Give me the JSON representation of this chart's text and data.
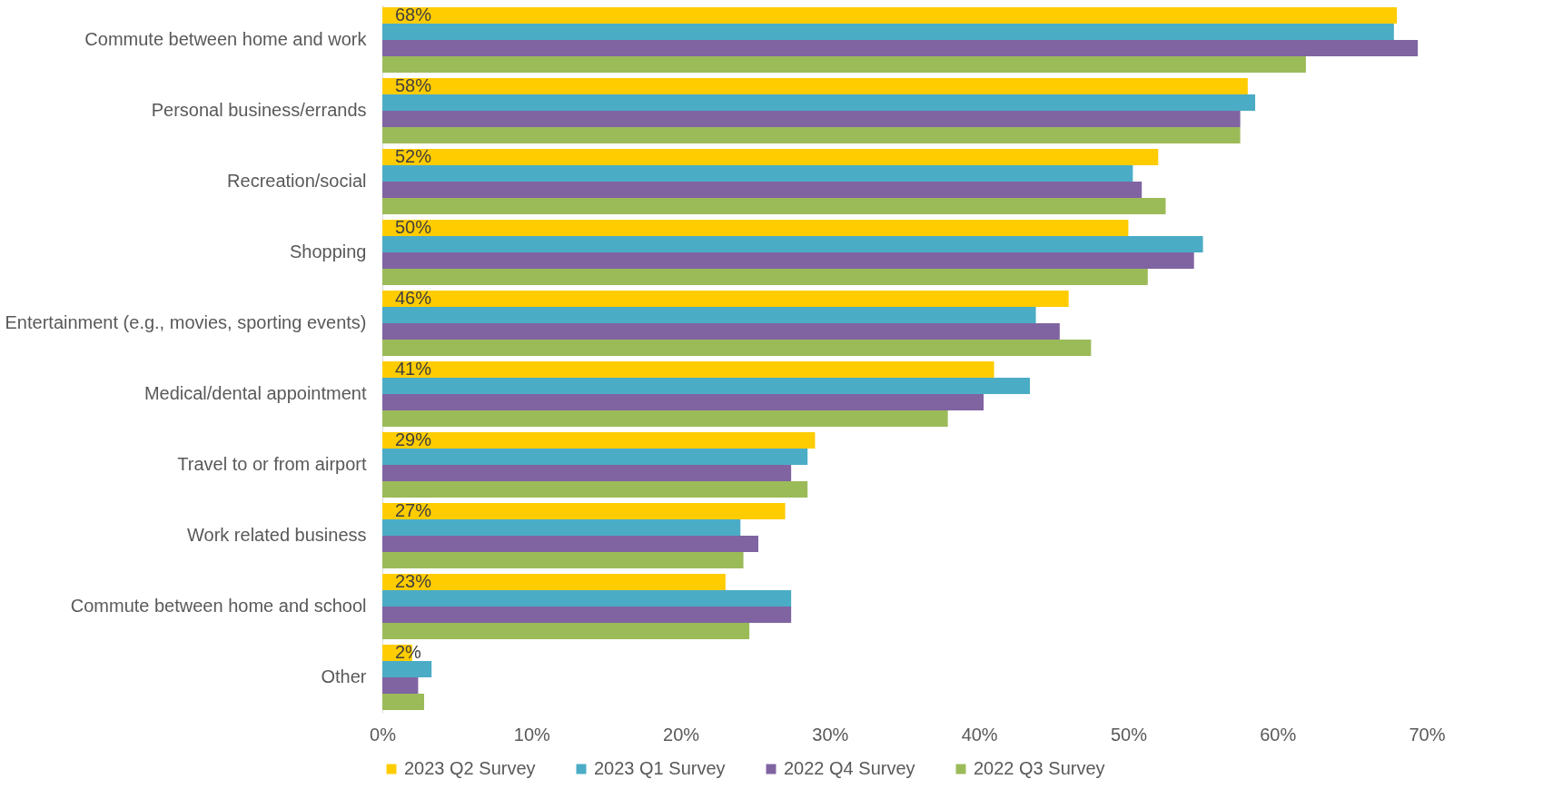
{
  "chart_data": {
    "type": "bar",
    "orientation": "horizontal",
    "categories": [
      "Commute between home and work",
      "Personal business/errands",
      "Recreation/social",
      "Shopping",
      "Entertainment (e.g., movies, sporting events)",
      "Medical/dental appointment",
      "Travel to or from airport",
      "Work related business",
      "Commute between home and school",
      "Other"
    ],
    "series": [
      {
        "name": "2023 Q2 Survey",
        "color": "#ffcc00",
        "values": [
          68,
          58,
          52,
          50,
          46,
          41,
          29,
          27,
          23,
          2
        ],
        "value_labels": [
          "68%",
          "58%",
          "52%",
          "50%",
          "46%",
          "41%",
          "29%",
          "27%",
          "23%",
          "2%"
        ]
      },
      {
        "name": "2023 Q1 Survey",
        "color": "#4bacc6",
        "values": [
          67.8,
          58.5,
          50.3,
          55,
          43.8,
          43.4,
          28.5,
          24,
          27.4,
          3.3
        ]
      },
      {
        "name": "2022 Q4 Survey",
        "color": "#8064a2",
        "values": [
          69.4,
          57.5,
          50.9,
          54.4,
          45.4,
          40.3,
          27.4,
          25.2,
          27.4,
          2.4
        ]
      },
      {
        "name": "2022 Q3 Survey",
        "color": "#9bbb59",
        "values": [
          61.9,
          57.5,
          52.5,
          51.3,
          47.5,
          37.9,
          28.5,
          24.2,
          24.6,
          2.8
        ]
      }
    ],
    "xlim": [
      0,
      70
    ],
    "xticks": [
      {
        "value": 0,
        "label": "0%"
      },
      {
        "value": 10,
        "label": "10%"
      },
      {
        "value": 20,
        "label": "20%"
      },
      {
        "value": 30,
        "label": "30%"
      },
      {
        "value": 40,
        "label": "40%"
      },
      {
        "value": 50,
        "label": "50%"
      },
      {
        "value": 60,
        "label": "60%"
      },
      {
        "value": 70,
        "label": "70%"
      }
    ],
    "grid": false,
    "legend": "bottom"
  }
}
